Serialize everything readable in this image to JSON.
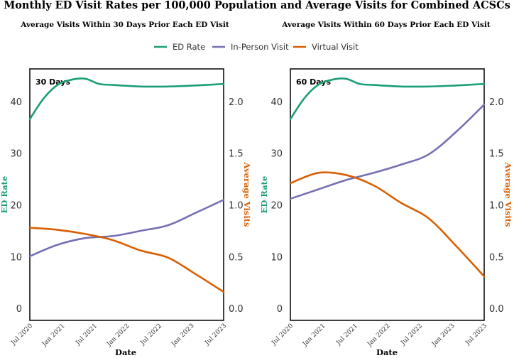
{
  "title": "Monthly ED Visit Rates per 100,000 Population and Average Visits for Combined ACSCs",
  "legend": {
    "entries": [
      {
        "label": "ED Rate",
        "color": "#1b9e77"
      },
      {
        "label": "In-Person Visit",
        "color": "#7570b3"
      },
      {
        "label": "Virtual Visit",
        "color": "#d95f02"
      }
    ]
  },
  "chart_data": [
    {
      "type": "line",
      "subtitle": "Average Visits Within 30 Days Prior Each ED Visit",
      "panel_label": "30 Days",
      "xlabel": "Date",
      "ylabel_left": "ED Rate",
      "ylabel_right": "Average Visits",
      "x_ticks": [
        "Jul 2020",
        "Jan 2021",
        "Jul 2021",
        "Jan 2022",
        "Jul 2022",
        "Jan 2023",
        "Jul 2023"
      ],
      "xlim": [
        0,
        42
      ],
      "ylim_left": [
        -2.3,
        46.3
      ],
      "yticks_left": [
        "0",
        "10",
        "20",
        "30",
        "40"
      ],
      "ylim_right": [
        -0.115,
        2.315
      ],
      "yticks_right": [
        "0.0",
        "0.5",
        "1.0",
        "1.5",
        "2.0"
      ],
      "series": [
        {
          "name": "ED Rate",
          "axis": "left",
          "color": "#1b9e77",
          "x": [
            0,
            3,
            6,
            9,
            12,
            15,
            18,
            24,
            30,
            36,
            42
          ],
          "values": [
            36.6,
            40.6,
            43.2,
            44.2,
            44.4,
            43.4,
            43.2,
            42.9,
            42.9,
            43.1,
            43.4
          ]
        },
        {
          "name": "In-Person Visit",
          "axis": "left",
          "color": "#7570b3",
          "x": [
            0,
            6,
            12,
            18,
            24,
            30,
            36,
            42
          ],
          "values": [
            10.1,
            12.3,
            13.6,
            14.0,
            15.0,
            16.1,
            18.5,
            21.0
          ]
        },
        {
          "name": "Virtual Visit",
          "axis": "right",
          "color": "#d95f02",
          "x": [
            0,
            6,
            12,
            18,
            24,
            30,
            36,
            42
          ],
          "values": [
            0.78,
            0.76,
            0.72,
            0.66,
            0.56,
            0.49,
            0.33,
            0.16
          ]
        }
      ]
    },
    {
      "type": "line",
      "subtitle": "Average Visits Within 60 Days Prior Each ED Visit",
      "panel_label": "60 Days",
      "xlabel": "Date",
      "ylabel_left": "ED Rate",
      "ylabel_right": "Average Visits",
      "x_ticks": [
        "Jul 2020",
        "Jan 2021",
        "Jul 2021",
        "Jan 2022",
        "Jul 2022",
        "Jan 2023",
        "Jul 2023"
      ],
      "xlim": [
        0,
        42
      ],
      "ylim_left": [
        -2.3,
        46.3
      ],
      "yticks_left": [
        "0",
        "10",
        "20",
        "30",
        "40"
      ],
      "ylim_right": [
        -0.115,
        2.315
      ],
      "yticks_right": [
        "0.0",
        "0.5",
        "1.0",
        "1.5",
        "2.0"
      ],
      "series": [
        {
          "name": "ED Rate",
          "axis": "left",
          "color": "#1b9e77",
          "x": [
            0,
            3,
            6,
            9,
            12,
            15,
            18,
            24,
            30,
            36,
            42
          ],
          "values": [
            36.6,
            40.6,
            43.2,
            44.2,
            44.4,
            43.4,
            43.2,
            42.9,
            42.9,
            43.1,
            43.4
          ]
        },
        {
          "name": "In-Person Visit",
          "axis": "right",
          "color": "#7570b3",
          "x": [
            0,
            6,
            12,
            18,
            24,
            30,
            36,
            42
          ],
          "values": [
            1.06,
            1.15,
            1.24,
            1.31,
            1.39,
            1.49,
            1.71,
            1.97
          ]
        },
        {
          "name": "Virtual Visit",
          "axis": "right",
          "color": "#d95f02",
          "x": [
            0,
            6,
            12,
            18,
            24,
            30,
            36,
            42
          ],
          "values": [
            1.21,
            1.31,
            1.29,
            1.19,
            1.02,
            0.87,
            0.6,
            0.31
          ]
        }
      ]
    }
  ]
}
